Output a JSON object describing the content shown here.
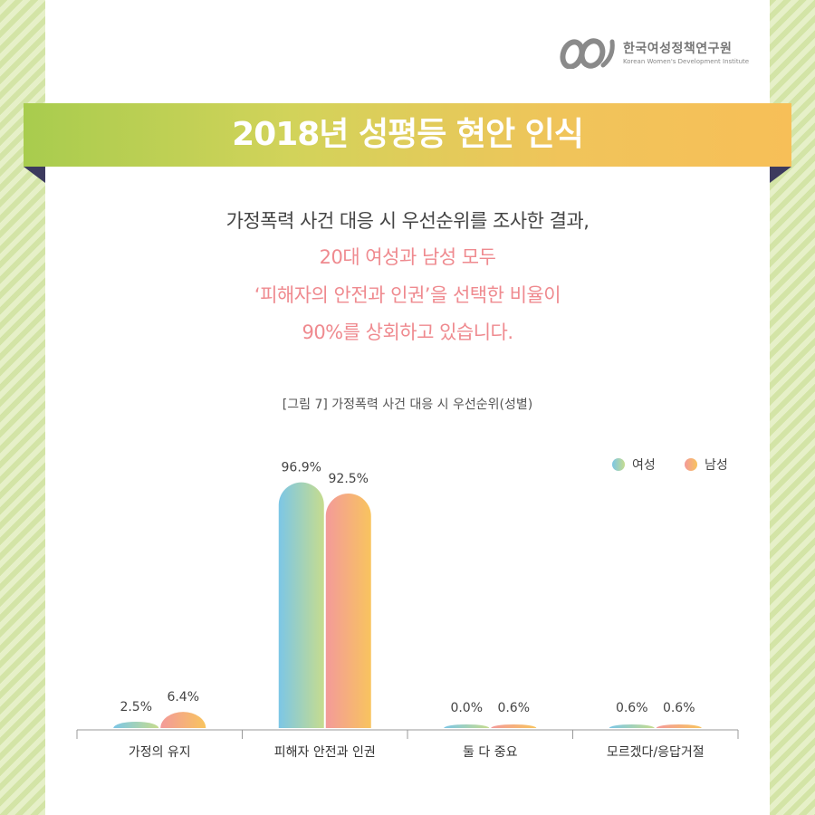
{
  "logo": {
    "name": "한국여성정책연구원",
    "subtitle": "Korean Women's Development Institute"
  },
  "title": "2018년 성평등 현안 인식",
  "description": {
    "line1": "가정폭력 사건 대응 시 우선순위를 조사한 결과,",
    "line2": "20대 여성과 남성 모두",
    "line3": "‘피해자의 안전과 인권’을 선택한 비율이",
    "line4": "90%를 상회하고 있습니다."
  },
  "colors": {
    "female_gradient": [
      "#7cc6e6",
      "#c6dc8e"
    ],
    "male_gradient": [
      "#f39a9a",
      "#f8c45e"
    ],
    "highlight": "#ef8a8f",
    "ribbon": [
      "#a8cc4e",
      "#f7bf58"
    ]
  },
  "chart_data": {
    "type": "bar",
    "title": "[그림 7] 가정폭력 사건 대응 시 우선순위(성별)",
    "categories": [
      "가정의 유지",
      "피해자 안전과 인권",
      "둘 다 중요",
      "모르겠다/응답거절"
    ],
    "series": [
      {
        "name": "여성",
        "values": [
          2.5,
          96.9,
          0.0,
          0.6
        ],
        "labels": [
          "2.5%",
          "96.9%",
          "0.0%",
          "0.6%"
        ]
      },
      {
        "name": "남성",
        "values": [
          6.4,
          92.5,
          0.6,
          0.6
        ],
        "labels": [
          "6.4%",
          "92.5%",
          "0.6%",
          "0.6%"
        ]
      }
    ],
    "ylim": [
      0,
      100
    ],
    "grid": false,
    "legend_position": "top-right",
    "xlabel": "",
    "ylabel": ""
  }
}
